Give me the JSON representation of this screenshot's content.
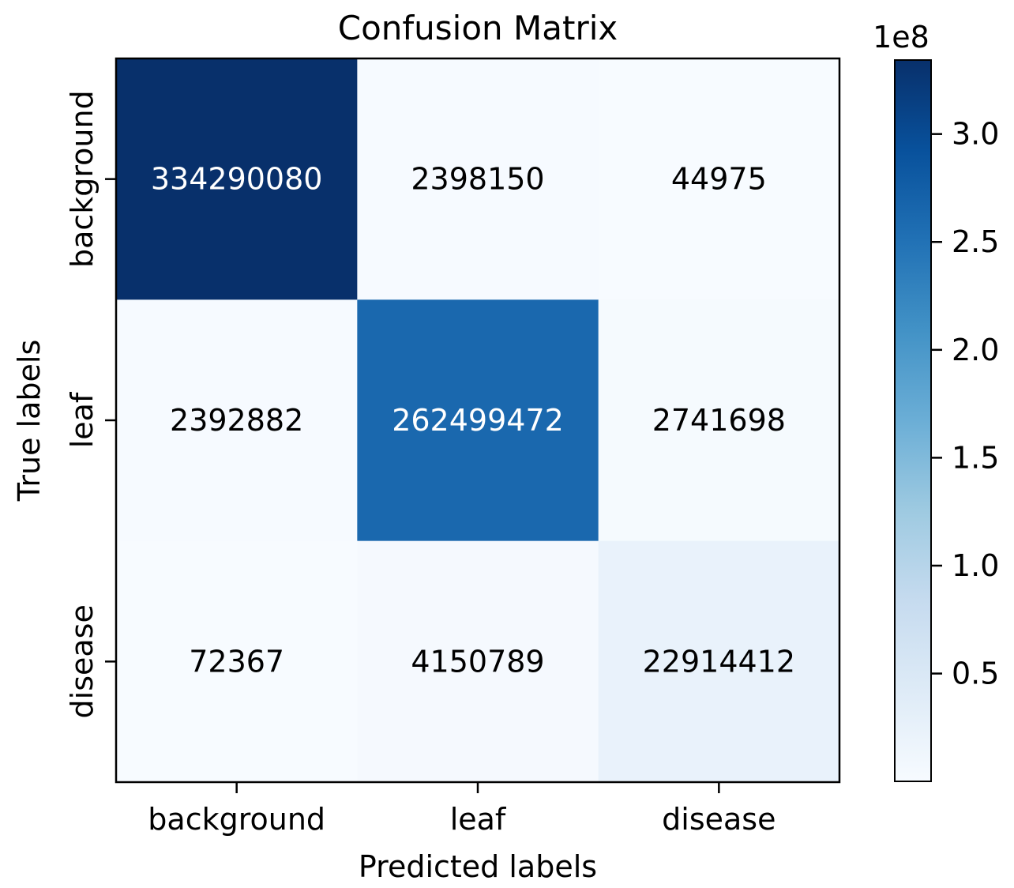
{
  "chart_data": {
    "type": "heatmap",
    "title": "Confusion Matrix",
    "xlabel": "Predicted labels",
    "ylabel": "True labels",
    "x_categories": [
      "background",
      "leaf",
      "disease"
    ],
    "y_categories": [
      "background",
      "leaf",
      "disease"
    ],
    "values": [
      [
        334290080,
        2398150,
        44975
      ],
      [
        2392882,
        262499472,
        2741698
      ],
      [
        72367,
        4150789,
        22914412
      ]
    ],
    "colormap": "Blues",
    "colorbar": {
      "range": [
        44975,
        334290080
      ],
      "offset_label": "1e8",
      "ticks": [
        0.5,
        1.0,
        1.5,
        2.0,
        2.5,
        3.0
      ],
      "tick_labels": [
        "0.5",
        "1.0",
        "1.5",
        "2.0",
        "2.5",
        "3.0"
      ]
    },
    "grid": false,
    "colorbar_placement": "right"
  }
}
